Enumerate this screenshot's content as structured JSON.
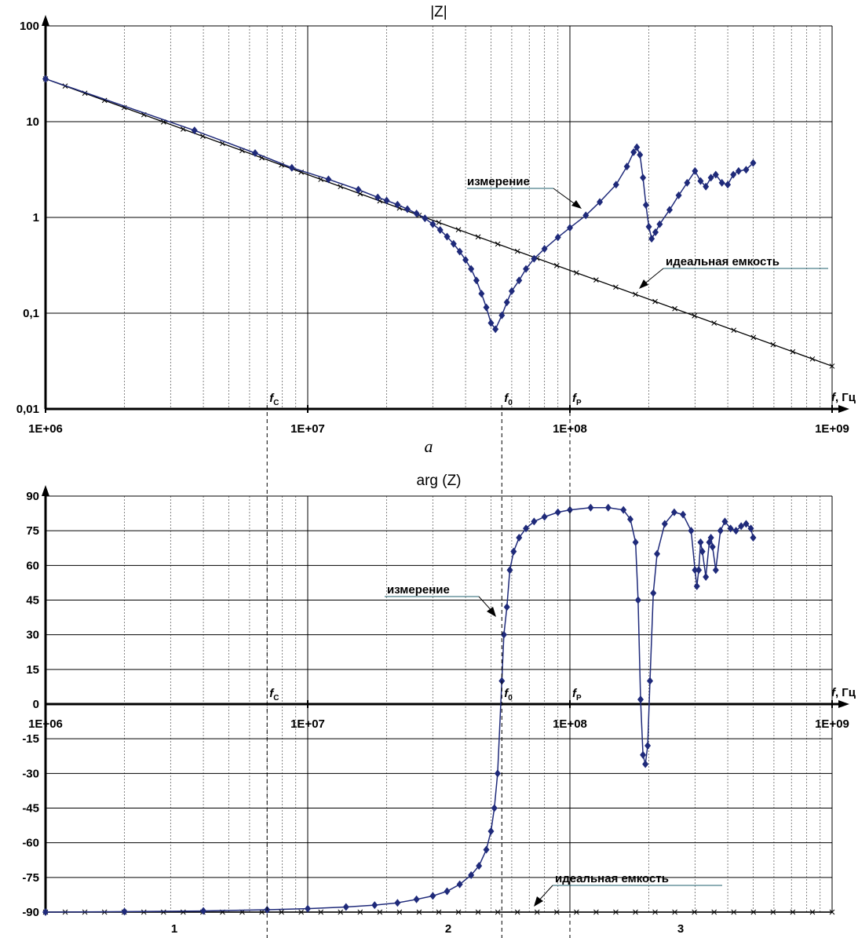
{
  "chart_data": [
    {
      "type": "line",
      "title": "|Z|",
      "xscale": "log",
      "yscale": "log",
      "xlim": [
        1000000,
        1000000000
      ],
      "ylim": [
        0.01,
        100
      ],
      "grid": true,
      "x_tick_labels": [
        "1E+06",
        "1E+07",
        "1E+08",
        "1E+09"
      ],
      "y_tick_labels": [
        "0,01",
        "0,1",
        "1",
        "10",
        "100"
      ],
      "xlabel_prefix": "f",
      "xlabel_unit": ", Гц",
      "caption": "a",
      "markers": [
        {
          "name": "f",
          "sub": "C",
          "x": 7000000
        },
        {
          "name": "f",
          "sub": "0",
          "x": 55000000
        },
        {
          "name": "f",
          "sub": "P",
          "x": 100000000
        }
      ],
      "series": [
        {
          "name": "измерение",
          "color": "#1f2a7a",
          "x": [
            1000000,
            3700000,
            6300000,
            8700000,
            12000000,
            15600000,
            18500000,
            20000000,
            22000000,
            24000000,
            26000000,
            28000000,
            30000000,
            32000000,
            34000000,
            36000000,
            38000000,
            40000000,
            42000000,
            44000000,
            46000000,
            48000000,
            50000000,
            52000000,
            55000000,
            57500000,
            60000000,
            64000000,
            68000000,
            73000000,
            80000000,
            90000000,
            100000000,
            115000000,
            130000000,
            150000000,
            165000000,
            175000000,
            180000000,
            185000000,
            190000000,
            195000000,
            200000000,
            205000000,
            212000000,
            220000000,
            240000000,
            260000000,
            280000000,
            300000000,
            315000000,
            330000000,
            345000000,
            360000000,
            380000000,
            400000000,
            420000000,
            440000000,
            470000000,
            500000000
          ],
          "y": [
            28,
            8.1,
            4.7,
            3.3,
            2.5,
            1.95,
            1.62,
            1.5,
            1.36,
            1.22,
            1.1,
            0.98,
            0.85,
            0.74,
            0.63,
            0.53,
            0.44,
            0.36,
            0.29,
            0.22,
            0.16,
            0.115,
            0.079,
            0.068,
            0.095,
            0.13,
            0.17,
            0.22,
            0.29,
            0.37,
            0.47,
            0.62,
            0.78,
            1.05,
            1.45,
            2.2,
            3.4,
            4.8,
            5.4,
            4.5,
            2.6,
            1.35,
            0.8,
            0.6,
            0.7,
            0.85,
            1.2,
            1.7,
            2.3,
            3.05,
            2.4,
            2.1,
            2.6,
            2.8,
            2.3,
            2.2,
            2.8,
            3.05,
            3.15,
            3.7
          ]
        },
        {
          "name": "идеальная емкость",
          "color": "#000000",
          "x": [
            1000000,
            1000000000
          ],
          "y": [
            28,
            0.028
          ]
        }
      ]
    },
    {
      "type": "line",
      "title": "arg (Z)",
      "xscale": "log",
      "xlim": [
        1000000,
        1000000000
      ],
      "ylim": [
        -90,
        90
      ],
      "grid": true,
      "x_tick_labels": [
        "1E+06",
        "1E+07",
        "1E+08",
        "1E+09"
      ],
      "y_tick_labels": [
        "90",
        "75",
        "60",
        "45",
        "30",
        "15",
        "0",
        "-15",
        "-30",
        "-45",
        "-60",
        "-75",
        "-90"
      ],
      "xlabel_prefix": "f",
      "xlabel_unit": ", Гц",
      "markers": [
        {
          "name": "f",
          "sub": "C",
          "x": 7000000
        },
        {
          "name": "f",
          "sub": "0",
          "x": 55000000
        },
        {
          "name": "f",
          "sub": "P",
          "x": 100000000
        }
      ],
      "regions": [
        "1",
        "2",
        "3"
      ],
      "series": [
        {
          "name": "измерение",
          "color": "#1f2a7a",
          "x": [
            1000000,
            2000000,
            4000000,
            7000000,
            10000000,
            14000000,
            18000000,
            22000000,
            26000000,
            30000000,
            34000000,
            38000000,
            42000000,
            45000000,
            48000000,
            50000000,
            51500000,
            53000000,
            55000000,
            56000000,
            57500000,
            59000000,
            61000000,
            64000000,
            68000000,
            73000000,
            80000000,
            90000000,
            100000000,
            120000000,
            140000000,
            160000000,
            170000000,
            178000000,
            182000000,
            186000000,
            190000000,
            194000000,
            198000000,
            202000000,
            208000000,
            215000000,
            230000000,
            250000000,
            270000000,
            290000000,
            300000000,
            305000000,
            310000000,
            315000000,
            320000000,
            330000000,
            340000000,
            345000000,
            350000000,
            360000000,
            375000000,
            390000000,
            410000000,
            430000000,
            450000000,
            470000000,
            490000000,
            500000000
          ],
          "y": [
            -90,
            -89.8,
            -89.5,
            -89.0,
            -88.5,
            -87.8,
            -87,
            -86,
            -84.5,
            -83,
            -81,
            -78,
            -74,
            -70,
            -63,
            -55,
            -45,
            -30,
            10,
            30,
            42,
            58,
            66,
            72,
            76,
            79,
            81,
            83,
            84,
            85,
            85,
            84,
            80,
            70,
            45,
            2,
            -22,
            -26,
            -18,
            10,
            48,
            65,
            78,
            83,
            82,
            75,
            58,
            51,
            58,
            70,
            66,
            55,
            70,
            72,
            68,
            58,
            75,
            79,
            76,
            75,
            77,
            78,
            76,
            72
          ]
        },
        {
          "name": "идеальная емкость",
          "color": "#000000",
          "x": [
            1000000,
            1000000000
          ],
          "y": [
            -90,
            -90
          ]
        }
      ]
    }
  ]
}
